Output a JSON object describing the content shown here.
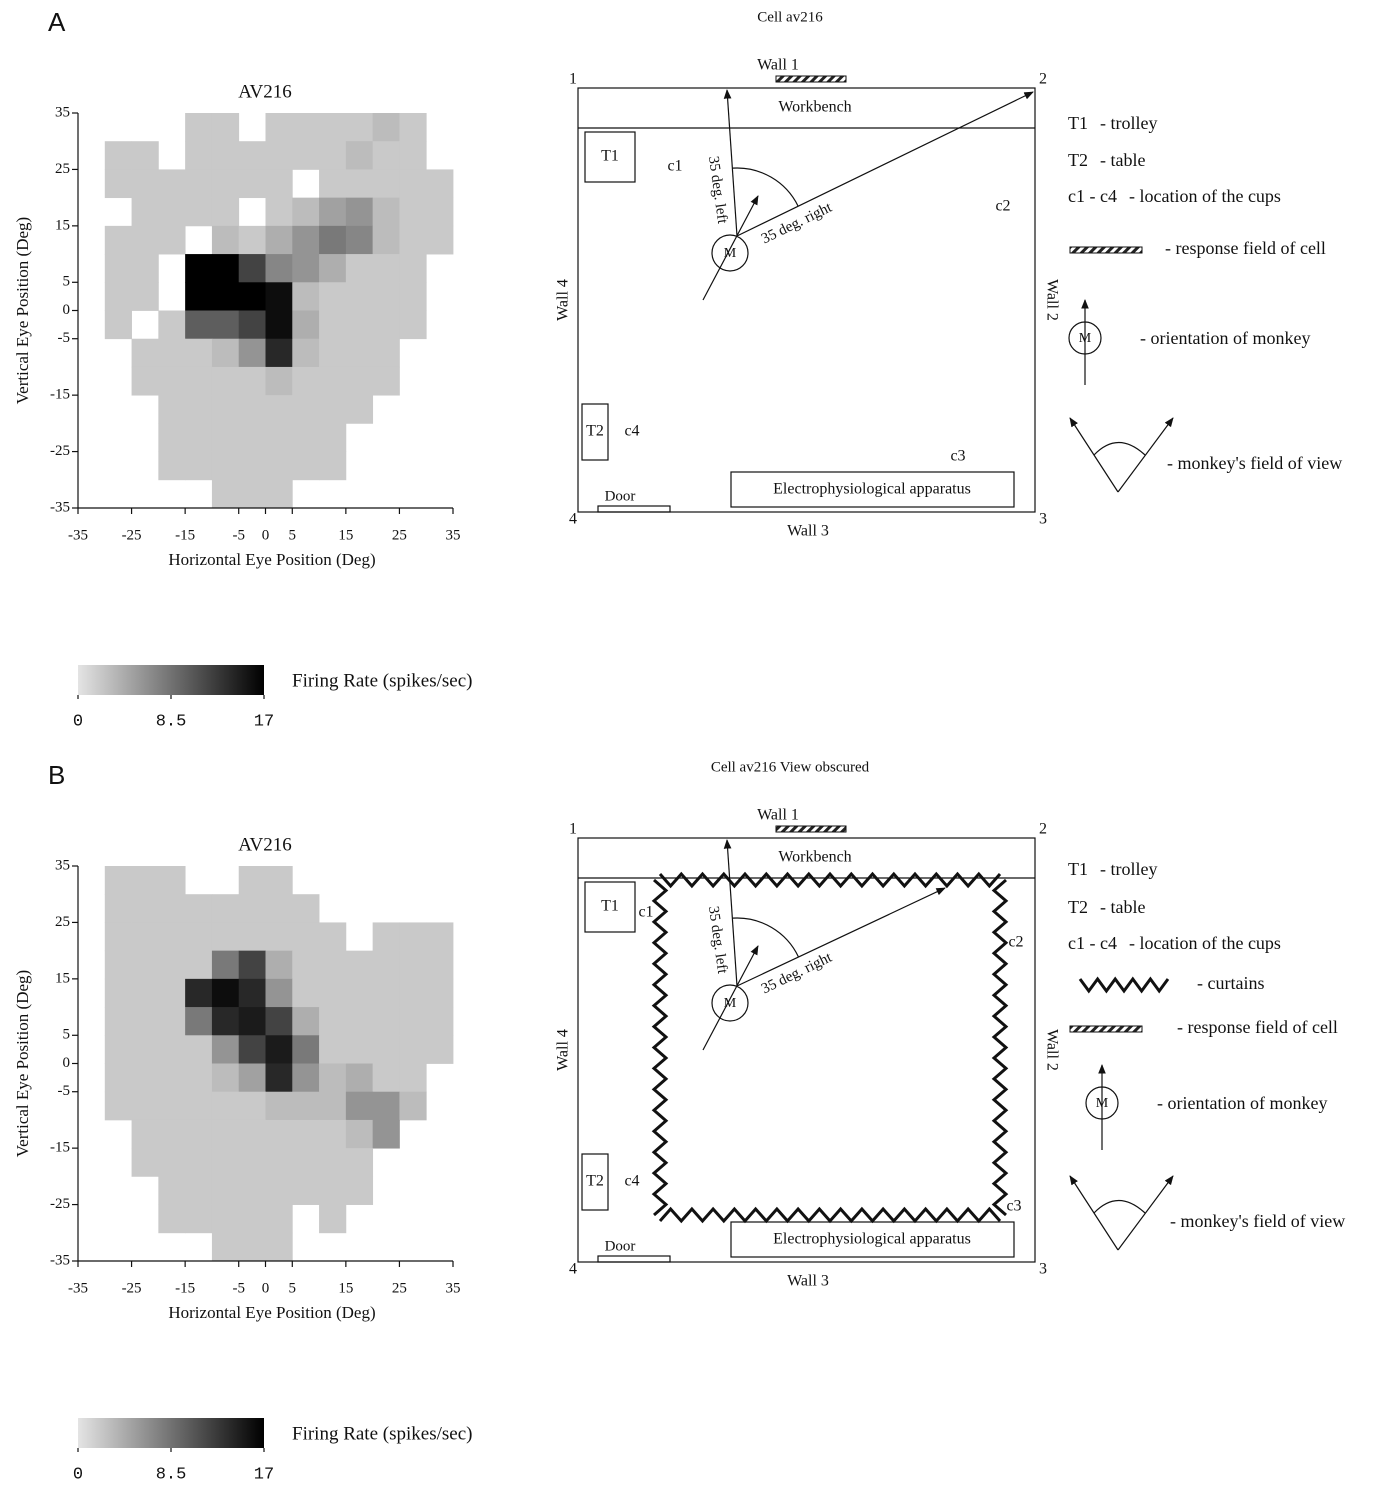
{
  "chart_data": [
    {
      "type": "heatmap",
      "title": "AV216",
      "xlabel": "Horizontal Eye Position (Deg)",
      "ylabel": "Vertical Eye Position (Deg)",
      "xlim": [
        -35,
        35
      ],
      "ylim": [
        -35,
        35
      ],
      "xticks": [
        -35,
        -25,
        -15,
        -5,
        0,
        5,
        15,
        25,
        35
      ],
      "yticks": [
        -35,
        -25,
        -15,
        -5,
        0,
        5,
        15,
        25,
        35
      ],
      "x": [
        -32.5,
        -27.5,
        -22.5,
        -17.5,
        -12.5,
        -7.5,
        -2.5,
        2.5,
        7.5,
        12.5,
        17.5,
        22.5,
        27.5,
        32.5
      ],
      "y": [
        32.5,
        27.5,
        22.5,
        17.5,
        12.5,
        7.5,
        2.5,
        -2.5,
        -7.5,
        -12.5,
        -17.5,
        -22.5,
        -27.5,
        -32.5
      ],
      "z": [
        [
          null,
          null,
          null,
          null,
          2,
          2,
          null,
          2,
          2,
          2,
          2,
          3,
          2,
          null
        ],
        [
          null,
          2,
          2,
          null,
          2,
          2,
          2,
          2,
          2,
          2,
          3,
          2,
          2,
          null
        ],
        [
          null,
          2,
          2,
          2,
          2,
          2,
          2,
          2,
          null,
          2,
          2,
          2,
          2,
          2
        ],
        [
          null,
          null,
          2,
          2,
          2,
          2,
          null,
          2,
          3,
          5,
          6,
          3,
          2,
          2
        ],
        [
          null,
          2,
          2,
          2,
          null,
          3,
          2,
          4,
          6,
          8,
          7,
          3,
          2,
          2
        ],
        [
          null,
          2,
          2,
          null,
          17,
          17,
          12,
          7,
          6,
          4,
          2,
          2,
          2,
          null
        ],
        [
          null,
          2,
          2,
          null,
          17,
          17,
          17,
          16,
          3,
          2,
          2,
          2,
          2,
          null
        ],
        [
          null,
          2,
          null,
          2,
          10,
          10,
          12,
          16,
          4,
          2,
          2,
          2,
          2,
          null
        ],
        [
          null,
          null,
          2,
          2,
          2,
          3,
          6,
          14,
          3,
          2,
          2,
          2,
          null,
          null
        ],
        [
          null,
          null,
          2,
          2,
          2,
          2,
          2,
          3,
          2,
          2,
          2,
          2,
          null,
          null
        ],
        [
          null,
          null,
          null,
          2,
          2,
          2,
          2,
          2,
          2,
          2,
          2,
          null,
          null,
          null
        ],
        [
          null,
          null,
          null,
          2,
          2,
          2,
          2,
          2,
          2,
          2,
          null,
          null,
          null,
          null
        ],
        [
          null,
          null,
          null,
          2,
          2,
          2,
          2,
          2,
          2,
          2,
          null,
          null,
          null,
          null
        ],
        [
          null,
          null,
          null,
          null,
          null,
          2,
          2,
          2,
          null,
          null,
          null,
          null,
          null,
          null
        ]
      ],
      "colormap": [
        "#e4e4e4",
        "#000000"
      ],
      "colorbar": {
        "label": "Firing Rate (spikes/sec)",
        "lim": [
          0,
          17
        ],
        "ticks": [
          0,
          8.5,
          17
        ]
      }
    },
    {
      "type": "heatmap",
      "title": "AV216",
      "xlabel": "Horizontal Eye Position (Deg)",
      "ylabel": "Vertical Eye Position (Deg)",
      "xlim": [
        -35,
        35
      ],
      "ylim": [
        -35,
        35
      ],
      "xticks": [
        -35,
        -25,
        -15,
        -5,
        0,
        5,
        15,
        25,
        35
      ],
      "yticks": [
        -35,
        -25,
        -15,
        -5,
        0,
        5,
        15,
        25,
        35
      ],
      "x": [
        -32.5,
        -27.5,
        -22.5,
        -17.5,
        -12.5,
        -7.5,
        -2.5,
        2.5,
        7.5,
        12.5,
        17.5,
        22.5,
        27.5,
        32.5
      ],
      "y": [
        32.5,
        27.5,
        22.5,
        17.5,
        12.5,
        7.5,
        2.5,
        -2.5,
        -7.5,
        -12.5,
        -17.5,
        -22.5,
        -27.5,
        -32.5
      ],
      "z": [
        [
          null,
          2,
          2,
          2,
          null,
          null,
          2,
          2,
          null,
          null,
          null,
          null,
          null,
          null
        ],
        [
          null,
          2,
          2,
          2,
          2,
          2,
          2,
          2,
          2,
          null,
          null,
          null,
          null,
          null
        ],
        [
          null,
          2,
          2,
          2,
          2,
          2,
          2,
          2,
          2,
          2,
          null,
          2,
          2,
          2
        ],
        [
          null,
          2,
          2,
          2,
          2,
          8,
          12,
          4,
          2,
          2,
          2,
          2,
          2,
          2
        ],
        [
          null,
          2,
          2,
          2,
          14,
          16,
          14,
          6,
          2,
          2,
          2,
          2,
          2,
          2
        ],
        [
          null,
          2,
          2,
          2,
          8,
          14,
          15,
          12,
          4,
          2,
          2,
          2,
          2,
          2
        ],
        [
          null,
          2,
          2,
          2,
          2,
          6,
          12,
          15,
          8,
          2,
          2,
          2,
          2,
          2
        ],
        [
          null,
          2,
          2,
          2,
          2,
          3,
          5,
          14,
          6,
          3,
          4,
          2,
          2,
          null
        ],
        [
          null,
          2,
          2,
          2,
          2,
          2,
          2,
          3,
          3,
          3,
          6,
          6,
          3,
          null
        ],
        [
          null,
          null,
          2,
          2,
          2,
          2,
          2,
          2,
          2,
          2,
          3,
          6,
          null,
          null
        ],
        [
          null,
          null,
          2,
          2,
          2,
          2,
          2,
          2,
          2,
          2,
          2,
          null,
          null,
          null
        ],
        [
          null,
          null,
          null,
          2,
          2,
          2,
          2,
          2,
          2,
          2,
          2,
          null,
          null,
          null
        ],
        [
          null,
          null,
          null,
          2,
          2,
          2,
          2,
          2,
          null,
          2,
          null,
          null,
          null,
          null
        ],
        [
          null,
          null,
          null,
          null,
          null,
          2,
          2,
          2,
          null,
          null,
          null,
          null,
          null,
          null
        ]
      ],
      "colormap": [
        "#e4e4e4",
        "#000000"
      ],
      "colorbar": {
        "label": "Firing Rate (spikes/sec)",
        "lim": [
          0,
          17
        ],
        "ticks": [
          0,
          8.5,
          17
        ]
      }
    }
  ],
  "panels": [
    {
      "label": "A",
      "diagram": {
        "title": "Cell av216",
        "walls": [
          "Wall 1",
          "Wall 2",
          "Wall 3",
          "Wall 4"
        ],
        "corners": [
          "1",
          "2",
          "3",
          "4"
        ],
        "workbench": "Workbench",
        "trolley": "T1",
        "table": "T2",
        "cups": [
          "c1",
          "c2",
          "c3",
          "c4"
        ],
        "door": "Door",
        "apparatus": "Electrophysiological apparatus",
        "monkey": "M",
        "left_ray": "35 deg. left",
        "right_ray": "35 deg. right"
      },
      "legend": [
        {
          "symbol": "T1",
          "text": "- trolley"
        },
        {
          "symbol": "T2",
          "text": "- table"
        },
        {
          "symbol": "c1 - c4",
          "text": "- location of the cups"
        },
        {
          "text": "- response field of cell"
        },
        {
          "text": "- orientation of monkey"
        },
        {
          "text": "- monkey's field of view"
        }
      ]
    },
    {
      "label": "B",
      "diagram": {
        "title": "Cell av216 View obscured",
        "walls": [
          "Wall 1",
          "Wall 2",
          "Wall 3",
          "Wall 4"
        ],
        "corners": [
          "1",
          "2",
          "3",
          "4"
        ],
        "workbench": "Workbench",
        "trolley": "T1",
        "table": "T2",
        "cups": [
          "c1",
          "c2",
          "c3",
          "c4"
        ],
        "door": "Door",
        "apparatus": "Electrophysiological apparatus",
        "monkey": "M",
        "left_ray": "35 deg. left",
        "right_ray": "35 deg. right"
      },
      "legend": [
        {
          "symbol": "T1",
          "text": "- trolley"
        },
        {
          "symbol": "T2",
          "text": "- table"
        },
        {
          "symbol": "c1 - c4",
          "text": "- location of the cups"
        },
        {
          "text": "- curtains"
        },
        {
          "text": "- response field of cell"
        },
        {
          "text": "- orientation of monkey"
        },
        {
          "text": "- monkey's field of view"
        }
      ]
    }
  ]
}
